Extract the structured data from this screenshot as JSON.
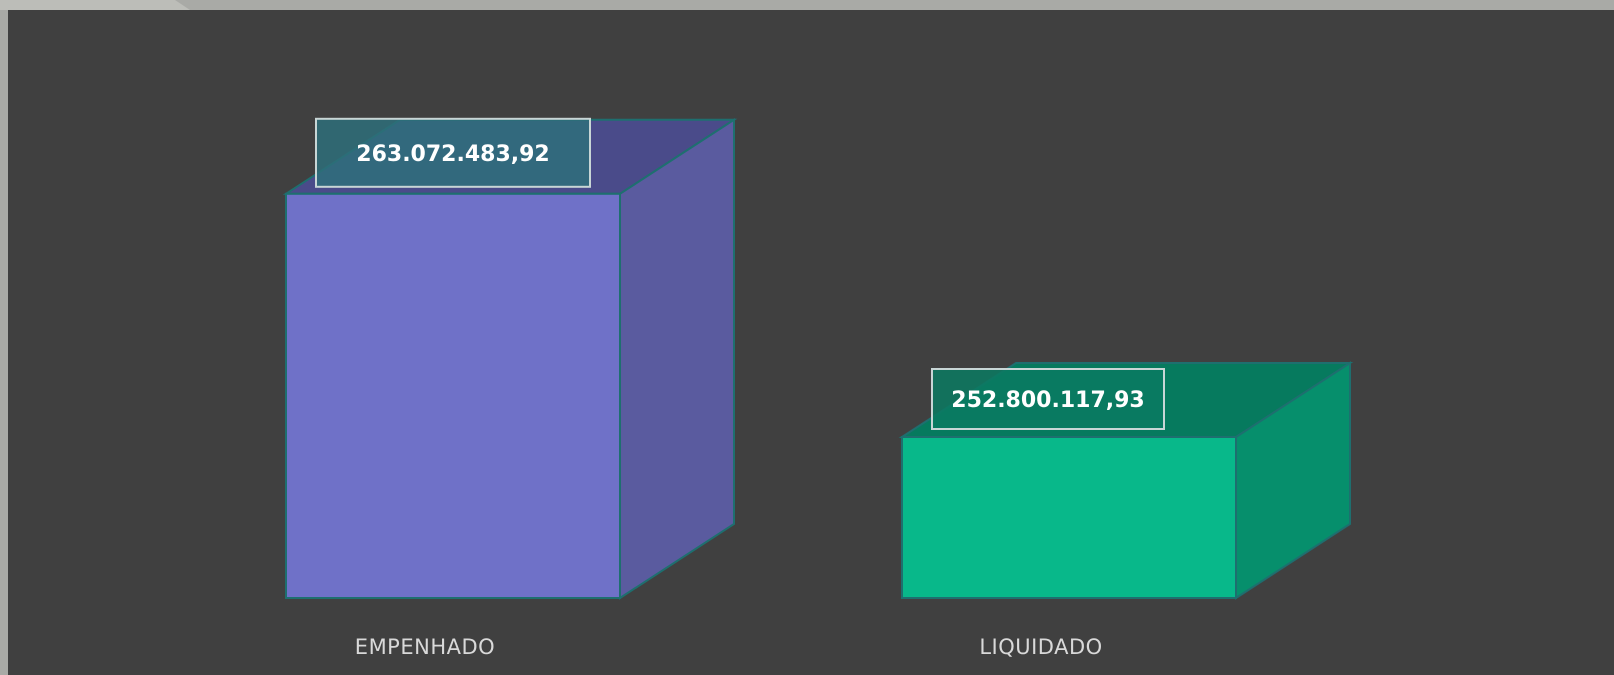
{
  "chart_data": {
    "type": "bar",
    "style": "3d-column",
    "categories": [
      "EMPENHADO",
      "LIQUIDADO"
    ],
    "values": [
      263072483.92,
      252800117.93
    ],
    "data_labels": [
      "263.072.483,92",
      "252.800.117,93"
    ],
    "ylim": [
      246000000,
      264500000
    ],
    "grid": false,
    "legend": "none",
    "title": "",
    "xlabel": "",
    "ylabel": ""
  },
  "colors": {
    "background": "#404040",
    "outer_frame": "#a9aaa6",
    "edge": "#1e6f6f",
    "label_box_border": "#c8d6d6",
    "bars": [
      {
        "front": "#6f71c8",
        "side": "#5a5b9f",
        "top": "#4a4b8a"
      },
      {
        "front": "#08b88a",
        "side": "#068f6c",
        "top": "#067a5e"
      }
    ],
    "label_box_fills": [
      "#2e6f7a",
      "#0b7a62"
    ]
  }
}
